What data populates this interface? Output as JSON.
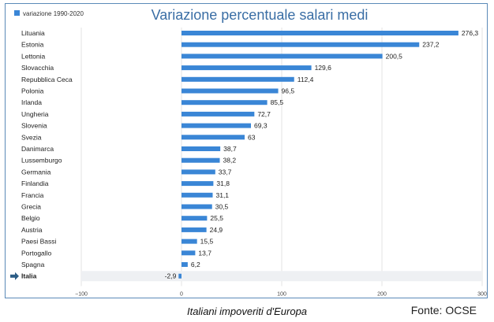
{
  "chart_data": {
    "type": "bar",
    "orientation": "horizontal",
    "title": "Variazione percentuale salari medi",
    "legend": "variazione 1990-2020",
    "legend_position": "top-left",
    "categories": [
      "Lituania",
      "Estonia",
      "Lettonia",
      "Slovacchia",
      "Repubblica Ceca",
      "Polonia",
      "Irlanda",
      "Ungheria",
      "Slovenia",
      "Svezia",
      "Danimarca",
      "Lussemburgo",
      "Germania",
      "Finlandia",
      "Francia",
      "Grecia",
      "Belgio",
      "Austria",
      "Paesi Bassi",
      "Portogallo",
      "Spagna",
      "Italia"
    ],
    "values": [
      276.3,
      237.2,
      200.5,
      129.6,
      112.4,
      96.5,
      85.5,
      72.7,
      69.3,
      63,
      38.7,
      38.2,
      33.7,
      31.8,
      31.1,
      30.5,
      25.5,
      24.9,
      15.5,
      13.7,
      6.2,
      -2.9
    ],
    "value_labels": [
      "276,3",
      "237,2",
      "200,5",
      "129,6",
      "112,4",
      "96,5",
      "85,5",
      "72,7",
      "69,3",
      "63",
      "38,7",
      "38,2",
      "33,7",
      "31,8",
      "31,1",
      "30,5",
      "25,5",
      "24,9",
      "15,5",
      "13,7",
      "6,2",
      "-2,9"
    ],
    "highlighted_category": "Italia",
    "xlim": [
      -100,
      300
    ],
    "xticks": [
      -100,
      0,
      100,
      200,
      300
    ],
    "xtick_labels": [
      "−100",
      "0",
      "100",
      "200",
      "300"
    ],
    "grid": true
  },
  "footer": {
    "caption": "Italiani impoveriti d'Europa",
    "source": "Fonte: OCSE"
  },
  "colors": {
    "bar": "#3a86d6",
    "title": "#3a6ea5",
    "highlight_band": "#eef0f3",
    "arrow": "#2c5d86",
    "grid": "#e3e3e3"
  }
}
